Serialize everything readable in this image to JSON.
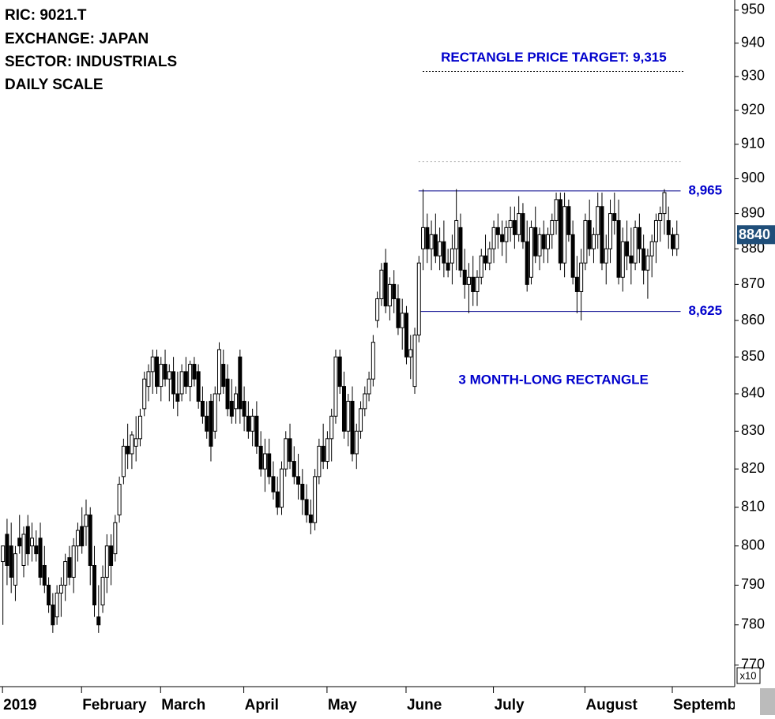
{
  "chart_data": {
    "type": "candlestick",
    "header": [
      "RIC: 9021.T",
      "EXCHANGE: JAPAN",
      "SECTOR: INDUSTRIALS",
      "DAILY SCALE"
    ],
    "log_scale": true,
    "ylim": [
      764.7,
      953.1
    ],
    "yticks": [
      770,
      780,
      790,
      800,
      810,
      820,
      830,
      840,
      850,
      860,
      870,
      880,
      890,
      900,
      910,
      920,
      930,
      940,
      950
    ],
    "scale_note": "x10",
    "xlim": [
      -0.6,
      176
    ],
    "xticks": [
      {
        "value": 0,
        "label": "2019"
      },
      {
        "value": 19,
        "label": "February"
      },
      {
        "value": 38,
        "label": "March"
      },
      {
        "value": 58,
        "label": "April"
      },
      {
        "value": 78,
        "label": "May"
      },
      {
        "value": 97,
        "label": "June"
      },
      {
        "value": 118,
        "label": "July"
      },
      {
        "value": 140,
        "label": "August"
      },
      {
        "value": 161,
        "label": "September"
      }
    ],
    "up_color": "#ffffff",
    "down_color": "#000000",
    "ohlc": [
      [
        796,
        800,
        780,
        800
      ],
      [
        803,
        807,
        790,
        795
      ],
      [
        800,
        806,
        788,
        792
      ],
      [
        790,
        800,
        786,
        798
      ],
      [
        802,
        808,
        798,
        800
      ],
      [
        795,
        805,
        792,
        803
      ],
      [
        805,
        808,
        795,
        798
      ],
      [
        800,
        806,
        796,
        802
      ],
      [
        800,
        804,
        796,
        798
      ],
      [
        802,
        806,
        790,
        792
      ],
      [
        795,
        800,
        788,
        790
      ],
      [
        790,
        792,
        783,
        785
      ],
      [
        785,
        788,
        778,
        780
      ],
      [
        782,
        790,
        780,
        788
      ],
      [
        788,
        792,
        782,
        790
      ],
      [
        790,
        798,
        786,
        796
      ],
      [
        797,
        800,
        790,
        792
      ],
      [
        792,
        802,
        788,
        800
      ],
      [
        800,
        806,
        796,
        804
      ],
      [
        805,
        810,
        798,
        800
      ],
      [
        805,
        812,
        800,
        808
      ],
      [
        808,
        810,
        790,
        795
      ],
      [
        795,
        800,
        782,
        785
      ],
      [
        782,
        790,
        778,
        780
      ],
      [
        785,
        795,
        783,
        792
      ],
      [
        792,
        803,
        788,
        800
      ],
      [
        800,
        803,
        790,
        795
      ],
      [
        798,
        808,
        796,
        806
      ],
      [
        808,
        818,
        806,
        816
      ],
      [
        818,
        828,
        816,
        826
      ],
      [
        826,
        832,
        820,
        824
      ],
      [
        824,
        830,
        820,
        829
      ],
      [
        826,
        834,
        822,
        828
      ],
      [
        828,
        836,
        826,
        834
      ],
      [
        836,
        846,
        834,
        844
      ],
      [
        842,
        848,
        838,
        846
      ],
      [
        846,
        852,
        840,
        850
      ],
      [
        850,
        852,
        840,
        842
      ],
      [
        842,
        850,
        838,
        848
      ],
      [
        848,
        852,
        842,
        844
      ],
      [
        844,
        848,
        838,
        846
      ],
      [
        846,
        850,
        836,
        840
      ],
      [
        840,
        846,
        834,
        838
      ],
      [
        840,
        848,
        838,
        846
      ],
      [
        846,
        850,
        840,
        842
      ],
      [
        842,
        849,
        838,
        848
      ],
      [
        848,
        850,
        842,
        844
      ],
      [
        846,
        848,
        836,
        838
      ],
      [
        838,
        842,
        832,
        834
      ],
      [
        834,
        838,
        828,
        830
      ],
      [
        838,
        840,
        822,
        826
      ],
      [
        830,
        842,
        828,
        840
      ],
      [
        840,
        854,
        838,
        852
      ],
      [
        848,
        852,
        840,
        842
      ],
      [
        844,
        848,
        834,
        836
      ],
      [
        838,
        844,
        832,
        834
      ],
      [
        836,
        842,
        832,
        840
      ],
      [
        850,
        852,
        832,
        836
      ],
      [
        838,
        842,
        830,
        834
      ],
      [
        834,
        838,
        828,
        830
      ],
      [
        830,
        836,
        826,
        834
      ],
      [
        834,
        838,
        824,
        826
      ],
      [
        826,
        830,
        818,
        820
      ],
      [
        820,
        828,
        814,
        824
      ],
      [
        824,
        828,
        816,
        818
      ],
      [
        818,
        822,
        812,
        814
      ],
      [
        814,
        818,
        808,
        810
      ],
      [
        810,
        822,
        808,
        820
      ],
      [
        820,
        830,
        818,
        828
      ],
      [
        828,
        832,
        820,
        822
      ],
      [
        822,
        826,
        816,
        818
      ],
      [
        818,
        824,
        812,
        816
      ],
      [
        816,
        820,
        808,
        812
      ],
      [
        812,
        816,
        806,
        808
      ],
      [
        808,
        812,
        803,
        806
      ],
      [
        806,
        820,
        804,
        818
      ],
      [
        818,
        828,
        816,
        826
      ],
      [
        826,
        832,
        820,
        822
      ],
      [
        822,
        830,
        820,
        828
      ],
      [
        828,
        836,
        822,
        834
      ],
      [
        834,
        852,
        832,
        850
      ],
      [
        850,
        852,
        840,
        842
      ],
      [
        842,
        846,
        828,
        830
      ],
      [
        830,
        840,
        826,
        838
      ],
      [
        838,
        842,
        822,
        824
      ],
      [
        824,
        832,
        820,
        830
      ],
      [
        830,
        838,
        828,
        836
      ],
      [
        836,
        842,
        834,
        840
      ],
      [
        840,
        846,
        838,
        844
      ],
      [
        844,
        856,
        842,
        854
      ],
      [
        860,
        868,
        858,
        866
      ],
      [
        866,
        876,
        864,
        874
      ],
      [
        876,
        880,
        862,
        864
      ],
      [
        864,
        872,
        860,
        870
      ],
      [
        870,
        874,
        862,
        866
      ],
      [
        866,
        870,
        856,
        858
      ],
      [
        858,
        866,
        852,
        862
      ],
      [
        862,
        864,
        848,
        850
      ],
      [
        850,
        856,
        844,
        852
      ],
      [
        842,
        858,
        840,
        856
      ],
      [
        856,
        878,
        854,
        876
      ],
      [
        880,
        897,
        874,
        886
      ],
      [
        886,
        890,
        876,
        880
      ],
      [
        880,
        888,
        874,
        884
      ],
      [
        884,
        890,
        876,
        878
      ],
      [
        878,
        886,
        874,
        882
      ],
      [
        882,
        888,
        872,
        876
      ],
      [
        876,
        880,
        872,
        874
      ],
      [
        876,
        884,
        870,
        880
      ],
      [
        880,
        897,
        874,
        888
      ],
      [
        886,
        890,
        872,
        874
      ],
      [
        874,
        880,
        866,
        870
      ],
      [
        870,
        876,
        862,
        872
      ],
      [
        872,
        878,
        864,
        868
      ],
      [
        868,
        874,
        864,
        872
      ],
      [
        872,
        880,
        870,
        878
      ],
      [
        878,
        884,
        874,
        876
      ],
      [
        876,
        882,
        874,
        880
      ],
      [
        880,
        888,
        876,
        886
      ],
      [
        886,
        890,
        880,
        884
      ],
      [
        884,
        888,
        878,
        882
      ],
      [
        882,
        888,
        876,
        886
      ],
      [
        886,
        892,
        882,
        888
      ],
      [
        888,
        892,
        880,
        884
      ],
      [
        884,
        895,
        882,
        890
      ],
      [
        890,
        893,
        880,
        882
      ],
      [
        882,
        888,
        868,
        870
      ],
      [
        872,
        888,
        870,
        886
      ],
      [
        886,
        892,
        876,
        878
      ],
      [
        878,
        886,
        874,
        884
      ],
      [
        884,
        888,
        876,
        880
      ],
      [
        880,
        886,
        876,
        884
      ],
      [
        884,
        890,
        880,
        888
      ],
      [
        888,
        896,
        884,
        894
      ],
      [
        894,
        896,
        874,
        876
      ],
      [
        876,
        896,
        872,
        892
      ],
      [
        892,
        894,
        882,
        884
      ],
      [
        884,
        888,
        870,
        872
      ],
      [
        872,
        878,
        862,
        868
      ],
      [
        868,
        880,
        860,
        876
      ],
      [
        876,
        890,
        874,
        888
      ],
      [
        888,
        894,
        878,
        880
      ],
      [
        880,
        886,
        876,
        884
      ],
      [
        884,
        896,
        880,
        892
      ],
      [
        892,
        896,
        874,
        876
      ],
      [
        876,
        884,
        870,
        880
      ],
      [
        880,
        894,
        876,
        890
      ],
      [
        890,
        896,
        884,
        888
      ],
      [
        888,
        894,
        870,
        872
      ],
      [
        872,
        886,
        868,
        882
      ],
      [
        882,
        888,
        874,
        878
      ],
      [
        878,
        886,
        870,
        876
      ],
      [
        876,
        888,
        874,
        886
      ],
      [
        886,
        890,
        876,
        880
      ],
      [
        880,
        884,
        870,
        874
      ],
      [
        874,
        880,
        866,
        878
      ],
      [
        878,
        884,
        872,
        882
      ],
      [
        882,
        890,
        876,
        888
      ],
      [
        888,
        892,
        882,
        890
      ],
      [
        890,
        897,
        884,
        896
      ],
      [
        888,
        892,
        880,
        884
      ],
      [
        884,
        886,
        878,
        880
      ],
      [
        880,
        888,
        878,
        884
      ]
    ],
    "last_price": {
      "value": 884,
      "label": "8840"
    },
    "rectangle": {
      "start": 100,
      "end": 163,
      "top": 896.5,
      "bottom": 862.5,
      "top_label": "8,965",
      "bottom_label": "8,625",
      "label": "3 MONTH-LONG RECTANGLE",
      "color": "#0000cc"
    },
    "price_target": {
      "value": 931.5,
      "label": "RECTANGLE PRICE TARGET: 9,315",
      "start": 101,
      "end": 164
    },
    "projection_level": {
      "value": 905,
      "start": 100,
      "end": 163
    }
  }
}
